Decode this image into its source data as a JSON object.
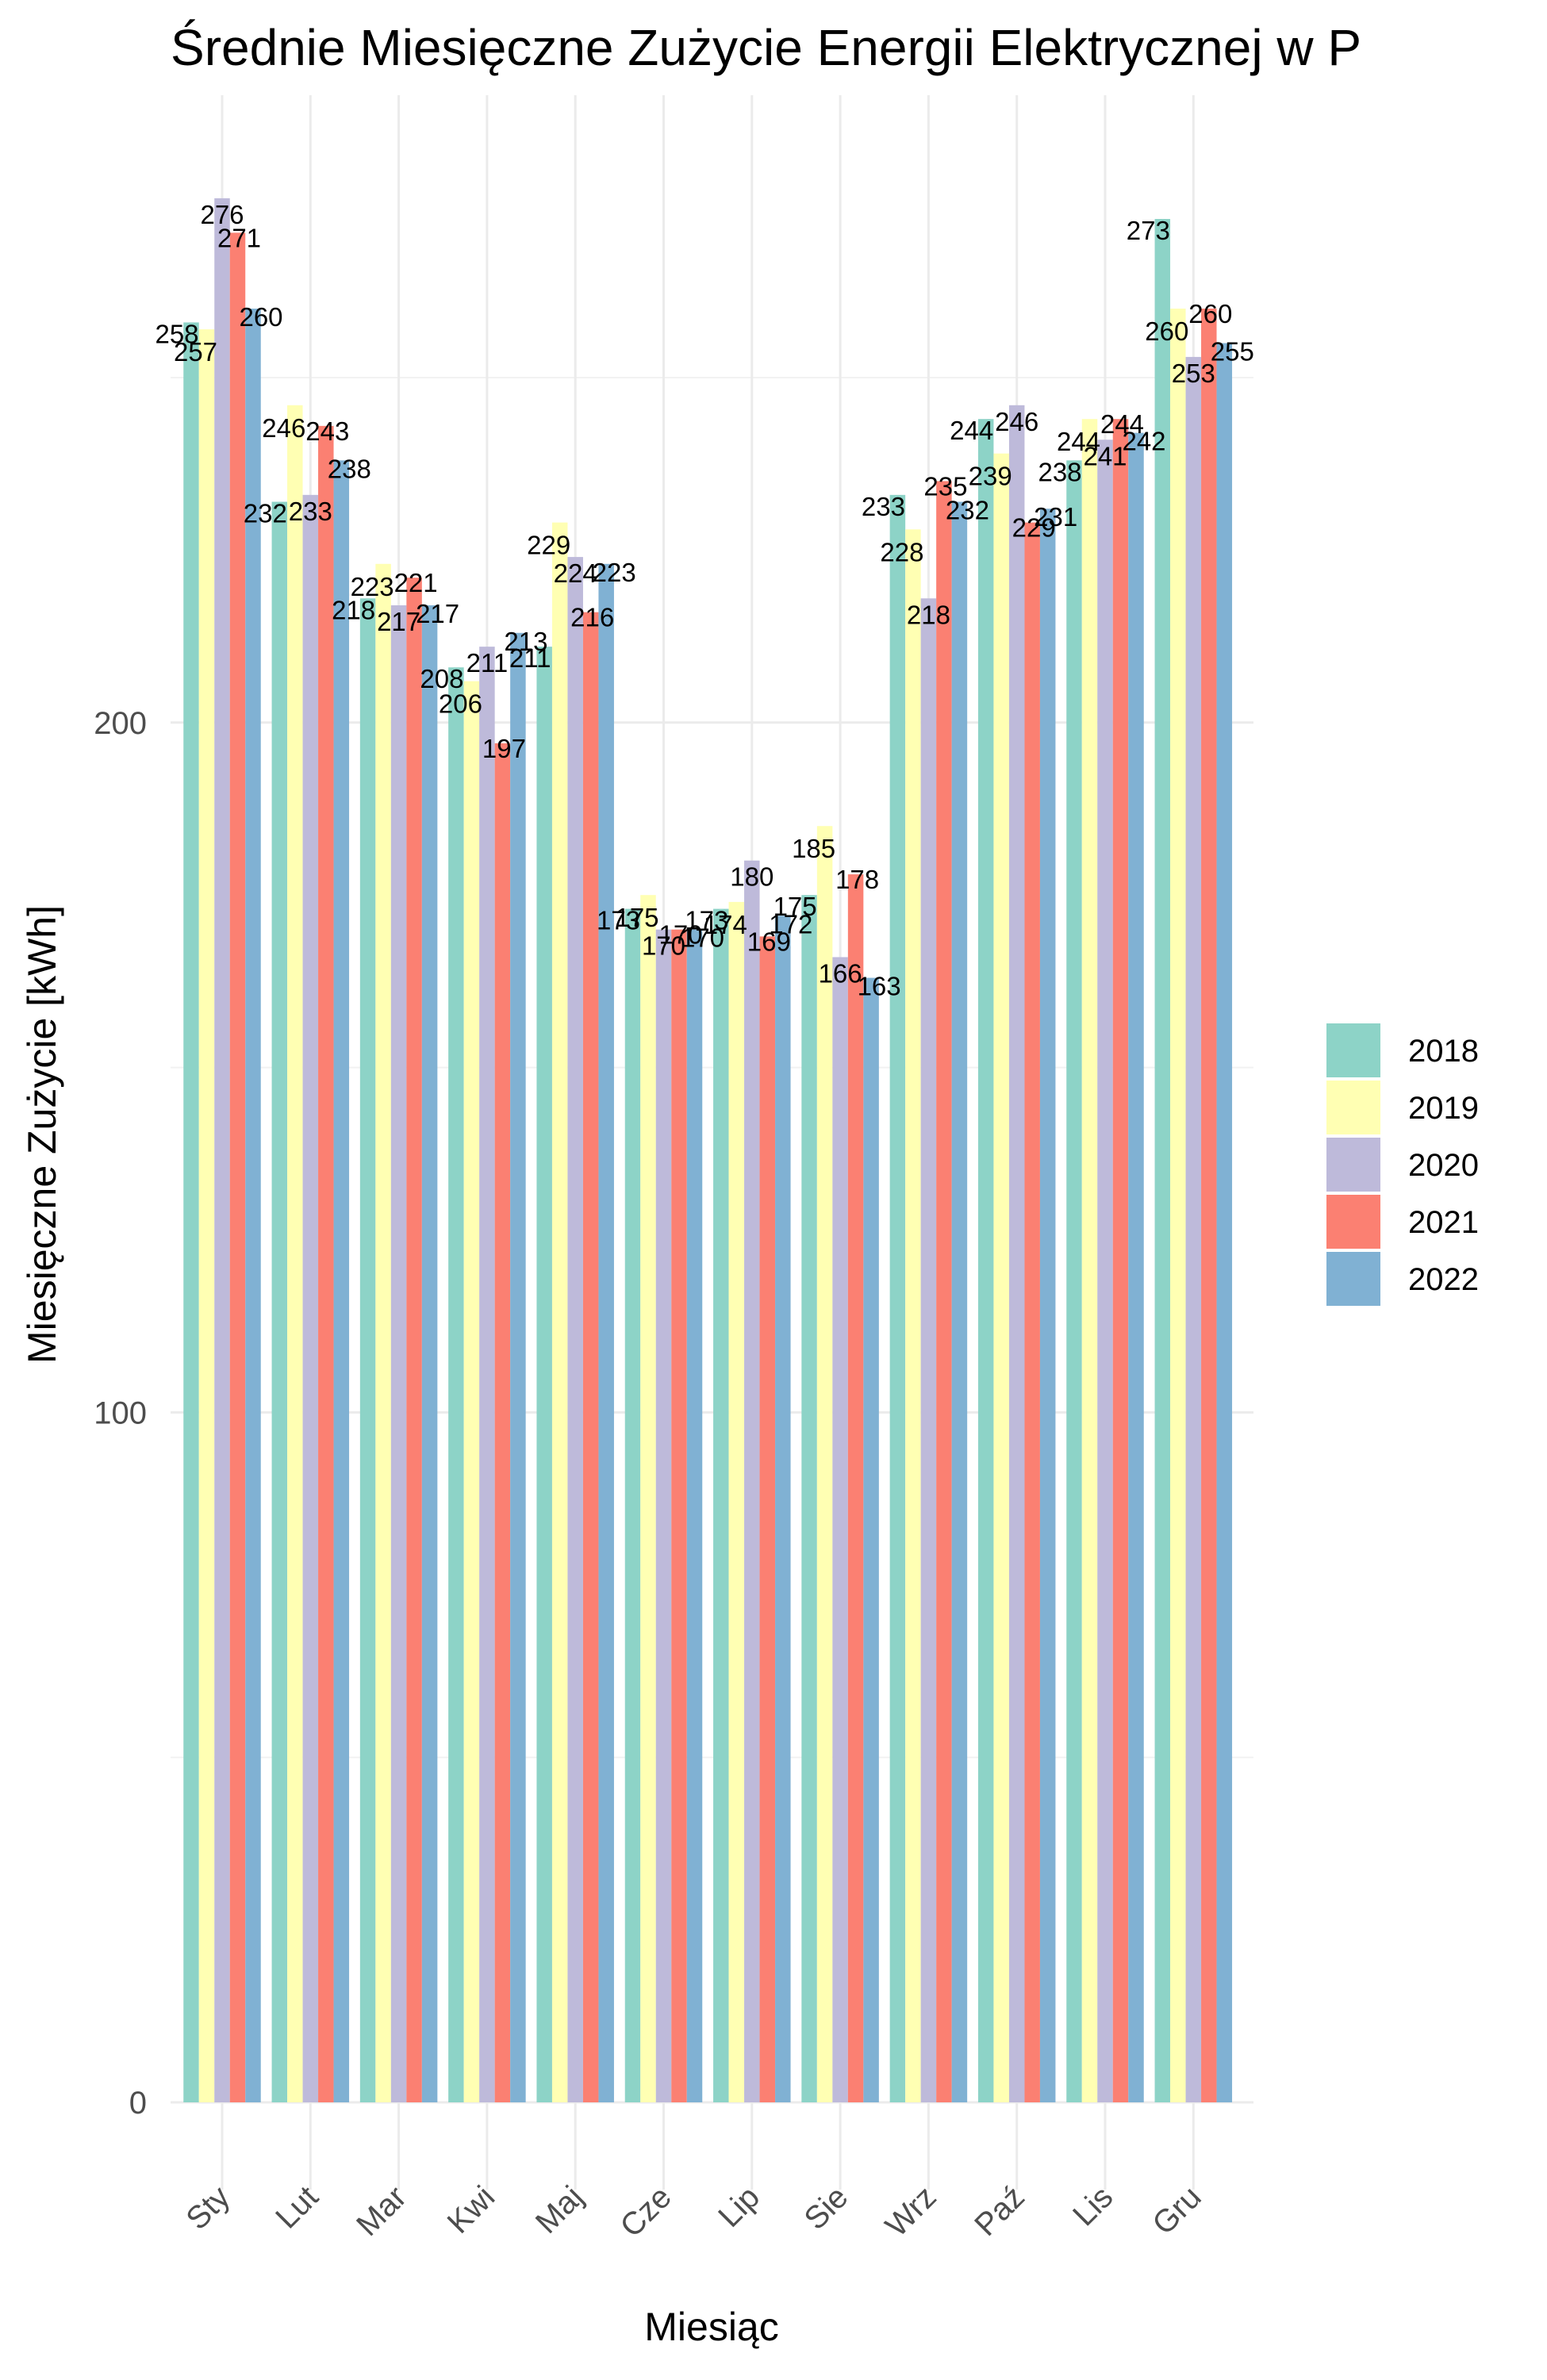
{
  "chart_data": {
    "type": "bar",
    "title": "Średnie Miesięczne Zużycie Energii Elektrycznej w P",
    "xlabel": "Miesiąc",
    "ylabel": "Miesięczne Zużycie [kWh]",
    "categories": [
      "Sty",
      "Lut",
      "Mar",
      "Kwi",
      "Maj",
      "Cze",
      "Lip",
      "Sie",
      "Wrz",
      "Paź",
      "Lis",
      "Gru"
    ],
    "series": [
      {
        "name": "2018",
        "color": "#8dd3c7",
        "values": [
          258,
          232,
          218,
          208,
          211,
          173,
          173,
          175,
          233,
          244,
          238,
          273
        ]
      },
      {
        "name": "2019",
        "color": "#ffffb3",
        "values": [
          257,
          246,
          223,
          206,
          229,
          175,
          174,
          185,
          228,
          239,
          244,
          260
        ]
      },
      {
        "name": "2020",
        "color": "#bebada",
        "values": [
          276,
          233,
          217,
          211,
          224,
          170,
          180,
          166,
          218,
          246,
          241,
          253
        ]
      },
      {
        "name": "2021",
        "color": "#fb8072",
        "values": [
          271,
          243,
          221,
          197,
          216,
          170,
          169,
          178,
          235,
          229,
          244,
          260
        ]
      },
      {
        "name": "2022",
        "color": "#80b1d3",
        "values": [
          260,
          238,
          217,
          213,
          223,
          170,
          172,
          163,
          232,
          231,
          242,
          255
        ]
      }
    ],
    "y_ticks": [
      0,
      100,
      200
    ],
    "ylim": [
      0,
      290
    ],
    "legend_position": "right",
    "grid": true
  }
}
